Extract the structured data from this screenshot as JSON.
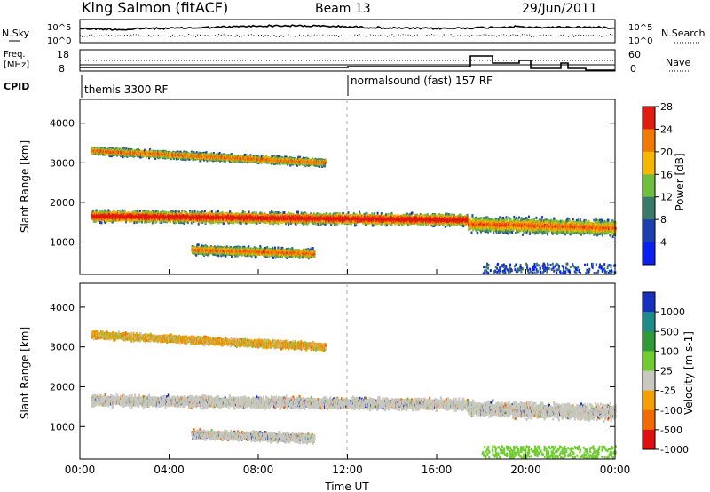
{
  "header": {
    "station": "King Salmon (fitACF)",
    "beam": "Beam 13",
    "date": "29/Jun/2011"
  },
  "noise_panel": {
    "left_label": "N.Sky",
    "right_label": "N.Search",
    "left_ticks": [
      "10^5",
      "10^0"
    ],
    "right_ticks": [
      "10^5",
      "10^0"
    ]
  },
  "freq_panel": {
    "left_label_1": "Freq.",
    "left_label_2": "[MHz]",
    "left_ticks": [
      "18",
      "8"
    ],
    "right_label": "Nave",
    "right_ticks": [
      "60",
      "0"
    ]
  },
  "cpid": {
    "label": "CPID",
    "mode_1": "themis 3300 RF",
    "mode_2": "normalsound (fast) 157 RF"
  },
  "time_axis": {
    "label": "Time UT",
    "ticks": [
      "00:00",
      "04:00",
      "08:00",
      "12:00",
      "16:00",
      "20:00",
      "00:00"
    ]
  },
  "chart_data": [
    {
      "type": "heatmap",
      "title": "",
      "ylabel": "Slant Range [km]",
      "xlabel": "Time UT",
      "xlim_hours": [
        0,
        24
      ],
      "ylim_km": [
        180,
        4600
      ],
      "y_ticks": [
        "1000",
        "2000",
        "3000",
        "4000"
      ],
      "colorbar_label": "Power [dB]",
      "colorbar_ticks": [
        "4",
        "8",
        "12",
        "16",
        "20",
        "24",
        "28"
      ],
      "colorbar_colors": [
        "#0a1ff0",
        "#1d3fb0",
        "#3a7a6a",
        "#6fbe3c",
        "#f5b700",
        "#f37a00",
        "#e21a10"
      ],
      "scatter_bands_km": [
        {
          "t_start": 0.5,
          "t_end": 17.4,
          "center_start": 1650,
          "center_end": 1550,
          "halfwidth": 180
        },
        {
          "t_start": 17.4,
          "t_end": 24.0,
          "center_start": 1450,
          "center_end": 1350,
          "halfwidth": 250
        },
        {
          "t_start": 5.0,
          "t_end": 10.5,
          "center_start": 800,
          "center_end": 700,
          "halfwidth": 150
        },
        {
          "t_start": 0.5,
          "t_end": 11.0,
          "center_start": 3300,
          "center_end": 3000,
          "halfwidth": 120
        }
      ]
    },
    {
      "type": "heatmap",
      "title": "",
      "ylabel": "Slant Range [km]",
      "xlabel": "Time UT",
      "xlim_hours": [
        0,
        24
      ],
      "ylim_km": [
        180,
        4600
      ],
      "y_ticks": [
        "1000",
        "2000",
        "3000",
        "4000"
      ],
      "colorbar_label": "Velocity [m s-1]",
      "colorbar_ticks": [
        "1000",
        "500",
        "100",
        "25",
        "-25",
        "-100",
        "-500",
        "-1000"
      ],
      "colorbar_colors": [
        "#1830c0",
        "#1f8a8a",
        "#2f9a3a",
        "#70cc30",
        "#c8c8c0",
        "#f5a000",
        "#f26a00",
        "#e01010"
      ]
    }
  ]
}
